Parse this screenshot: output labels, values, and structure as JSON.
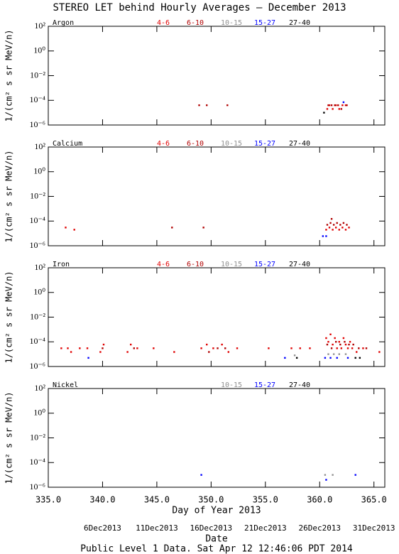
{
  "title": "STEREO LET behind Hourly Averages – December 2013",
  "x_label": "Day of Year 2013",
  "date_labels": [
    {
      "value": 340,
      "label": "6Dec2013"
    },
    {
      "value": 345,
      "label": "11Dec2013"
    },
    {
      "value": 350,
      "label": "16Dec2013"
    },
    {
      "value": 355,
      "label": "21Dec2013"
    },
    {
      "value": 360,
      "label": "26Dec2013"
    },
    {
      "value": 365,
      "label": "31Dec2013"
    }
  ],
  "date_axis_label": "Date",
  "footer": "Public Level 1 Data. Sat Apr 12 12:46:06 PDT 2014",
  "chart_data": [
    {
      "type": "scatter",
      "label": "Argon",
      "y_label": "1/(cm² s sr MeV/n)",
      "log_scale": true,
      "xlim": [
        335,
        366
      ],
      "ylim": [
        1e-06,
        100
      ],
      "xticks": [
        335,
        340,
        345,
        350,
        355,
        360,
        365
      ],
      "yticks": [
        {
          "value": 100,
          "label": "10²"
        },
        {
          "value": 1,
          "label": "10⁰"
        },
        {
          "value": 0.01,
          "label": "10⁻²"
        },
        {
          "value": 0.0001,
          "label": "10⁻⁴"
        },
        {
          "value": 1e-06,
          "label": "10⁻⁶"
        }
      ],
      "series": [
        {
          "name": "4-6",
          "color": "#e00000",
          "x": [
            360.7,
            360.9,
            361.2,
            361.5,
            361.8,
            362.1,
            362.4
          ],
          "values": [
            2e-05,
            4e-05,
            2e-05,
            4e-05,
            2e-05,
            4e-05,
            4e-05
          ]
        },
        {
          "name": "6-10",
          "color": "#b00000",
          "x": [
            348.9,
            349.6,
            351.5,
            360.8,
            361.1,
            361.4,
            361.7,
            362.0,
            362.5
          ],
          "values": [
            4e-05,
            4e-05,
            4e-05,
            4e-05,
            4e-05,
            4e-05,
            4e-05,
            2e-05,
            4e-05
          ]
        },
        {
          "name": "10-15",
          "color": "#909090",
          "x": [],
          "values": []
        },
        {
          "name": "15-27",
          "color": "#0000ff",
          "x": [
            362.2
          ],
          "values": [
            7e-05
          ]
        },
        {
          "name": "27-40",
          "color": "#000000",
          "x": [
            360.4
          ],
          "values": [
            1e-05
          ]
        }
      ]
    },
    {
      "type": "scatter",
      "label": "Calcium",
      "y_label": "1/(cm² s sr MeV/n)",
      "log_scale": true,
      "xlim": [
        335,
        366
      ],
      "ylim": [
        1e-06,
        100
      ],
      "xticks": [
        335,
        340,
        345,
        350,
        355,
        360,
        365
      ],
      "yticks": [
        {
          "value": 100,
          "label": "10²"
        },
        {
          "value": 1,
          "label": "10⁰"
        },
        {
          "value": 0.01,
          "label": "10⁻²"
        },
        {
          "value": 0.0001,
          "label": "10⁻⁴"
        },
        {
          "value": 1e-06,
          "label": "10⁻⁶"
        }
      ],
      "series": [
        {
          "name": "4-6",
          "color": "#e00000",
          "x": [
            336.6,
            337.4,
            360.6,
            360.9,
            361.2,
            361.5,
            361.8,
            362.1,
            362.4,
            362.7
          ],
          "values": [
            3e-05,
            2e-05,
            2e-05,
            3e-05,
            2e-05,
            3e-05,
            2e-05,
            3e-05,
            2e-05,
            3e-05
          ]
        },
        {
          "name": "6-10",
          "color": "#b00000",
          "x": [
            346.4,
            349.3,
            360.7,
            361.0,
            361.3,
            361.6,
            361.9,
            362.2,
            362.5,
            361.1
          ],
          "values": [
            3e-05,
            3e-05,
            5e-05,
            7e-05,
            5e-05,
            7e-05,
            5e-05,
            7e-05,
            5e-05,
            0.00015
          ]
        },
        {
          "name": "10-15",
          "color": "#909090",
          "x": [],
          "values": []
        },
        {
          "name": "15-27",
          "color": "#0000ff",
          "x": [
            360.3,
            360.6
          ],
          "values": [
            6e-06,
            6e-06
          ]
        },
        {
          "name": "27-40",
          "color": "#000000",
          "x": [],
          "values": []
        }
      ]
    },
    {
      "type": "scatter",
      "label": "Iron",
      "y_label": "1/(cm² s sr MeV/n)",
      "log_scale": true,
      "xlim": [
        335,
        366
      ],
      "ylim": [
        1e-06,
        100
      ],
      "xticks": [
        335,
        340,
        345,
        350,
        355,
        360,
        365
      ],
      "yticks": [
        {
          "value": 100,
          "label": "10²"
        },
        {
          "value": 1,
          "label": "10⁰"
        },
        {
          "value": 0.01,
          "label": "10⁻²"
        },
        {
          "value": 0.0001,
          "label": "10⁻⁴"
        },
        {
          "value": 1e-06,
          "label": "10⁻⁶"
        }
      ],
      "series": [
        {
          "name": "4-6",
          "color": "#e00000",
          "x": [
            336.2,
            336.8,
            337.1,
            337.9,
            338.6,
            339.8,
            340.1,
            342.3,
            342.6,
            343.2,
            344.7,
            346.6,
            349.1,
            349.6,
            350.2,
            351.0,
            351.6,
            352.4,
            355.3,
            357.4,
            358.2,
            359.1,
            360.6,
            360.8,
            361.0,
            361.2,
            361.4,
            361.6,
            361.8,
            362.0,
            362.2,
            362.4,
            362.6,
            362.8,
            363.0,
            363.4,
            364.0,
            365.5
          ],
          "values": [
            3e-05,
            3e-05,
            1.5e-05,
            3e-05,
            3e-05,
            1.5e-05,
            6e-05,
            1.5e-05,
            6e-05,
            3e-05,
            3e-05,
            1.5e-05,
            3e-05,
            6e-05,
            3e-05,
            6e-05,
            1.5e-05,
            3e-05,
            3e-05,
            3e-05,
            3e-05,
            3e-05,
            0.0002,
            0.0001,
            0.0004,
            6e-05,
            0.0002,
            3e-05,
            0.0001,
            3e-05,
            0.0002,
            6e-05,
            3e-05,
            0.0001,
            3e-05,
            1.5e-05,
            3e-05,
            1.5e-05
          ]
        },
        {
          "name": "6-10",
          "color": "#b00000",
          "x": [
            340.0,
            342.9,
            349.8,
            350.6,
            351.3,
            360.7,
            361.1,
            361.5,
            361.9,
            362.3,
            362.7,
            363.1,
            363.6,
            364.3
          ],
          "values": [
            3e-05,
            3e-05,
            1.5e-05,
            3e-05,
            3e-05,
            6e-05,
            3e-05,
            0.0001,
            6e-05,
            0.0001,
            6e-05,
            6e-05,
            3e-05,
            3e-05
          ]
        },
        {
          "name": "10-15",
          "color": "#909090",
          "x": [
            357.7,
            360.8,
            361.3,
            361.8,
            362.4
          ],
          "values": [
            8e-06,
            1e-05,
            1e-05,
            1e-05,
            1e-05
          ]
        },
        {
          "name": "15-27",
          "color": "#0000ff",
          "x": [
            338.7,
            356.8,
            360.5,
            361.0,
            361.6,
            362.6
          ],
          "values": [
            5e-06,
            5e-06,
            5e-06,
            5e-06,
            5e-06,
            5e-06
          ]
        },
        {
          "name": "27-40",
          "color": "#000000",
          "x": [
            357.9,
            363.3,
            363.7
          ],
          "values": [
            5e-06,
            5e-06,
            5e-06
          ]
        }
      ]
    },
    {
      "type": "scatter",
      "label": "Nickel",
      "y_label": "1/(cm² s sr MeV/n)",
      "log_scale": true,
      "xlim": [
        335,
        366
      ],
      "ylim": [
        1e-06,
        100
      ],
      "xticks": [
        {
          "value": 335,
          "label": "335.0"
        },
        {
          "value": 340,
          "label": "340.0"
        },
        {
          "value": 345,
          "label": "345.0"
        },
        {
          "value": 350,
          "label": "350.0"
        },
        {
          "value": 355,
          "label": "355.0"
        },
        {
          "value": 360,
          "label": "360.0"
        },
        {
          "value": 365,
          "label": "365.0"
        }
      ],
      "yticks": [
        {
          "value": 100,
          "label": "10²"
        },
        {
          "value": 1,
          "label": "10⁰"
        },
        {
          "value": 0.01,
          "label": "10⁻²"
        },
        {
          "value": 0.0001,
          "label": "10⁻⁴"
        },
        {
          "value": 1e-06,
          "label": "10⁻⁶"
        }
      ],
      "series": [
        {
          "name": "10-15",
          "color": "#909090",
          "x": [
            360.5,
            361.2
          ],
          "values": [
            1e-05,
            1e-05
          ]
        },
        {
          "name": "15-27",
          "color": "#0000ff",
          "x": [
            349.1,
            360.6,
            363.3
          ],
          "values": [
            1e-05,
            4e-06,
            1e-05
          ]
        },
        {
          "name": "27-40",
          "color": "#000000",
          "x": [],
          "values": []
        }
      ]
    }
  ]
}
